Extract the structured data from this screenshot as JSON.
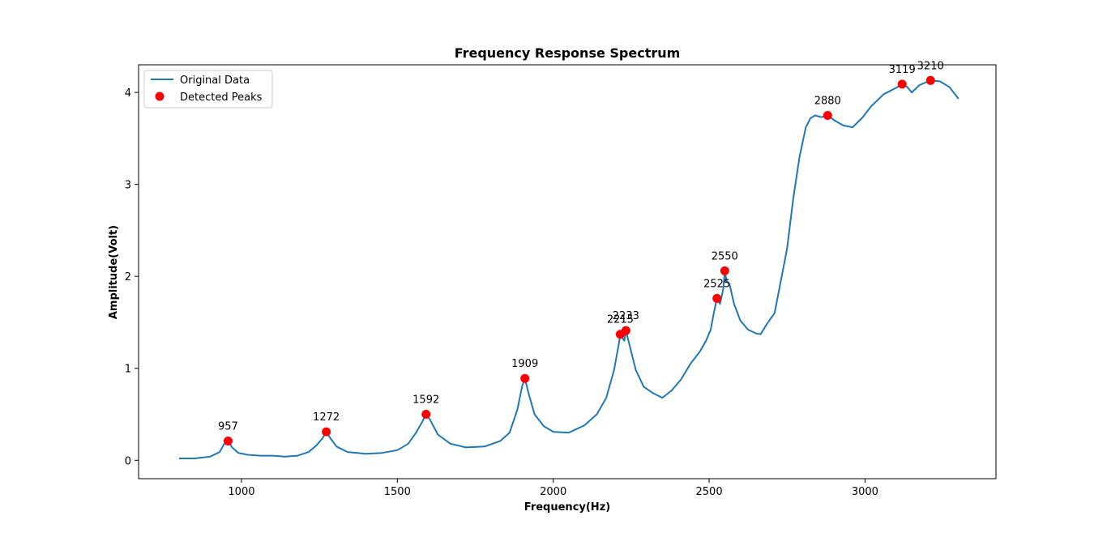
{
  "chart_data": {
    "type": "line",
    "title": "Frequency Response Spectrum",
    "xlabel": "Frequency(Hz)",
    "ylabel": "Amplitude(Volt)",
    "xlim": [
      670,
      3420
    ],
    "ylim": [
      -0.2,
      4.3
    ],
    "xticks": [
      1000,
      1500,
      2000,
      2500,
      3000
    ],
    "yticks": [
      0,
      1,
      2,
      3,
      4
    ],
    "grid": false,
    "legend_position": "top-left",
    "colors": {
      "line": "#1f77b4",
      "peaks": "#ff0000"
    },
    "series": [
      {
        "name": "Original Data",
        "kind": "line",
        "x": [
          800,
          850,
          900,
          930,
          945,
          957,
          970,
          990,
          1020,
          1060,
          1100,
          1140,
          1180,
          1215,
          1240,
          1260,
          1272,
          1285,
          1305,
          1340,
          1400,
          1450,
          1500,
          1535,
          1560,
          1580,
          1592,
          1605,
          1630,
          1670,
          1720,
          1780,
          1830,
          1860,
          1885,
          1900,
          1909,
          1920,
          1940,
          1970,
          2000,
          2050,
          2100,
          2140,
          2170,
          2195,
          2210,
          2215,
          2222,
          2228,
          2233,
          2245,
          2265,
          2290,
          2320,
          2350,
          2380,
          2410,
          2440,
          2470,
          2490,
          2505,
          2515,
          2525,
          2535,
          2545,
          2550,
          2556,
          2565,
          2580,
          2600,
          2625,
          2650,
          2665,
          2685,
          2710,
          2730,
          2750,
          2770,
          2790,
          2810,
          2825,
          2840,
          2860,
          2880,
          2900,
          2930,
          2960,
          2990,
          3020,
          3060,
          3100,
          3119,
          3135,
          3150,
          3175,
          3210,
          3240,
          3270,
          3300
        ],
        "y": [
          0.02,
          0.02,
          0.04,
          0.09,
          0.18,
          0.21,
          0.14,
          0.08,
          0.06,
          0.05,
          0.05,
          0.04,
          0.05,
          0.09,
          0.16,
          0.24,
          0.31,
          0.24,
          0.15,
          0.09,
          0.07,
          0.08,
          0.11,
          0.18,
          0.3,
          0.42,
          0.5,
          0.44,
          0.28,
          0.18,
          0.14,
          0.15,
          0.21,
          0.3,
          0.55,
          0.8,
          0.89,
          0.74,
          0.5,
          0.37,
          0.31,
          0.3,
          0.38,
          0.5,
          0.68,
          0.98,
          1.26,
          1.37,
          1.33,
          1.3,
          1.41,
          1.25,
          0.98,
          0.8,
          0.73,
          0.68,
          0.76,
          0.88,
          1.05,
          1.18,
          1.3,
          1.42,
          1.6,
          1.76,
          1.7,
          1.86,
          2.06,
          1.95,
          1.92,
          1.7,
          1.52,
          1.42,
          1.38,
          1.37,
          1.48,
          1.6,
          1.95,
          2.3,
          2.85,
          3.3,
          3.62,
          3.72,
          3.75,
          3.73,
          3.75,
          3.7,
          3.64,
          3.62,
          3.72,
          3.85,
          3.98,
          4.05,
          4.09,
          4.06,
          4.0,
          4.08,
          4.13,
          4.12,
          4.06,
          3.93
        ]
      },
      {
        "name": "Detected Peaks",
        "kind": "scatter",
        "x": [
          957,
          1272,
          1592,
          1909,
          2215,
          2233,
          2525,
          2550,
          2880,
          3119,
          3210
        ],
        "y": [
          0.21,
          0.31,
          0.5,
          0.89,
          1.37,
          1.41,
          1.76,
          2.06,
          3.75,
          4.09,
          4.13
        ],
        "labels": [
          "957",
          "1272",
          "1592",
          "1909",
          "2215",
          "2233",
          "2525",
          "2550",
          "2880",
          "3119",
          "3210"
        ]
      }
    ]
  }
}
